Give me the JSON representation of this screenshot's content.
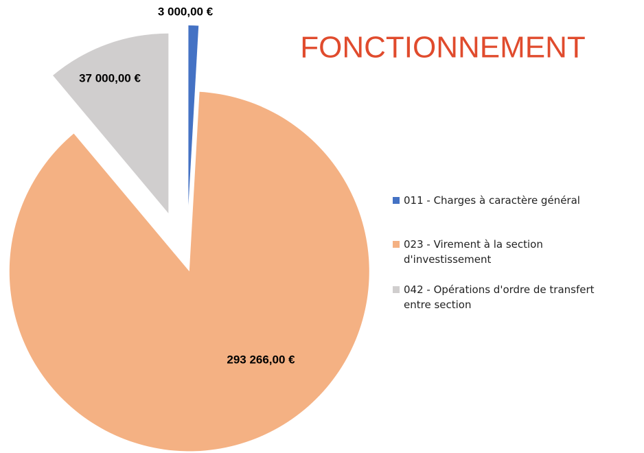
{
  "chart_data": {
    "type": "pie",
    "title": "FONCTIONNEMENT",
    "categories": [
      "011 - Charges à caractère général",
      "023 - Virement à la section d'investissement",
      "042 - Opérations d'ordre de transfert entre section"
    ],
    "values": [
      3000,
      293266,
      37000
    ],
    "value_labels": [
      "3 000,00 €",
      "293 266,00 €",
      "37 000,00 €"
    ],
    "colors": [
      "#4472c4",
      "#f4b183",
      "#d0cece"
    ],
    "legend": "right"
  }
}
